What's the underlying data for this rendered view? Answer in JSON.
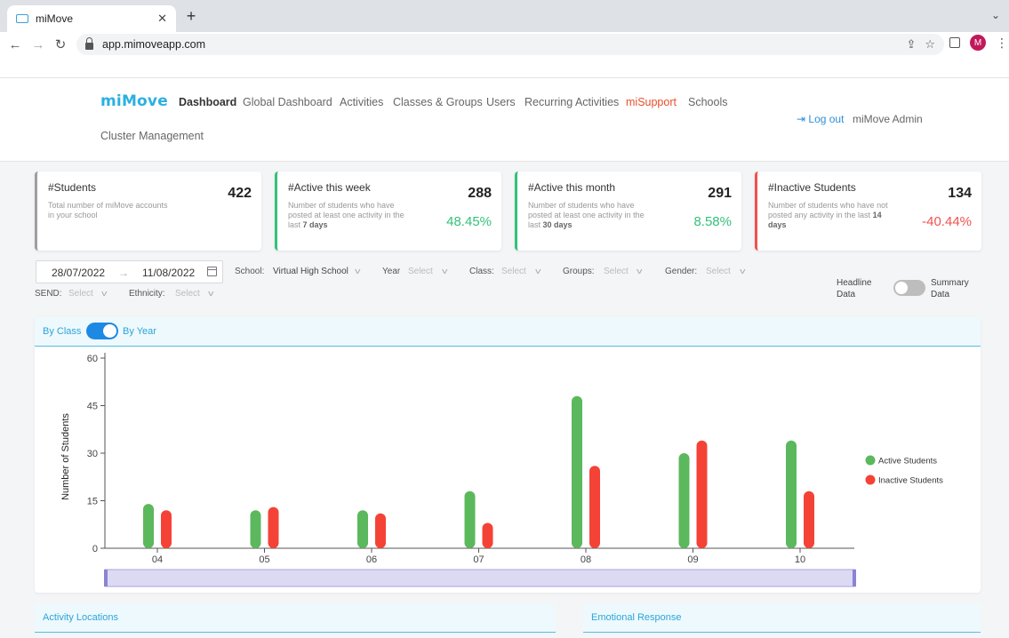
{
  "browser": {
    "tab_title": "miMove",
    "tab_close": "✕",
    "new_tab": "+",
    "url": "app.mimoveapp.com",
    "avatar_letter": "M"
  },
  "app": {
    "logo": "miMove",
    "nav": [
      {
        "label": "Dashboard"
      },
      {
        "label": "Global Dashboard"
      },
      {
        "label": "Activities"
      },
      {
        "label": "Classes & Groups"
      },
      {
        "label": "Users"
      },
      {
        "label": "Recurring Activities"
      },
      {
        "label": "miSupport"
      },
      {
        "label": "Schools"
      },
      {
        "label": "Cluster Management"
      }
    ],
    "logout": "Log out",
    "admin": "miMove Admin"
  },
  "cards": [
    {
      "title": "#Students",
      "value": "422",
      "desc": "Total number of miMove accounts in your school",
      "pct": "",
      "accent": "#9e9e9e"
    },
    {
      "title": "#Active this week",
      "value": "288",
      "desc_before": "Number of students who have posted at least one activity in the last ",
      "desc_bold": "7 days",
      "pct": "48.45%",
      "accent": "#34c17b",
      "pct_color": "#34c17b"
    },
    {
      "title": "#Active this month",
      "value": "291",
      "desc_before": "Number of students who have posted at least one activity in the last ",
      "desc_bold": "30 days",
      "pct": "8.58%",
      "accent": "#34c17b",
      "pct_color": "#34c17b"
    },
    {
      "title": "#Inactive Students",
      "value": "134",
      "desc_before": "Number of students who have not posted any activity in the last ",
      "desc_bold": "14 days",
      "pct": "-40.44%",
      "accent": "#ef5350",
      "pct_color": "#ef5350"
    }
  ],
  "filters": {
    "date_from": "28/07/2022",
    "date_arrow": "→",
    "date_to": "11/08/2022",
    "school_label": "School:",
    "school_value": "Virtual High School",
    "year_label": "Year",
    "class_label": "Class:",
    "groups_label": "Groups:",
    "gender_label": "Gender:",
    "send_label": "SEND:",
    "ethnicity_label": "Ethnicity:",
    "placeholder": "Select",
    "headline_toggle": [
      "Headline",
      "Data"
    ],
    "summary_toggle": [
      "Summary",
      "Data"
    ]
  },
  "chart_panel": {
    "by_class": "By Class",
    "by_year": "By Year"
  },
  "chart_data": {
    "type": "bar",
    "categories": [
      "04",
      "05",
      "06",
      "07",
      "08",
      "09",
      "10"
    ],
    "series": [
      {
        "name": "Active Students",
        "color": "#5cb85c",
        "values": [
          14,
          12,
          12,
          18,
          48,
          30,
          34
        ]
      },
      {
        "name": "Inactive Students",
        "color": "#f44336",
        "values": [
          12,
          13,
          11,
          8,
          26,
          34,
          18
        ]
      }
    ],
    "ylabel": "Number of Students",
    "ylim": [
      0,
      60
    ],
    "yticks": [
      0,
      15,
      30,
      45,
      60
    ],
    "grid": false,
    "legend": "right"
  },
  "bottom": {
    "activity_locations": "Activity Locations",
    "emotional_response": "Emotional Response"
  }
}
